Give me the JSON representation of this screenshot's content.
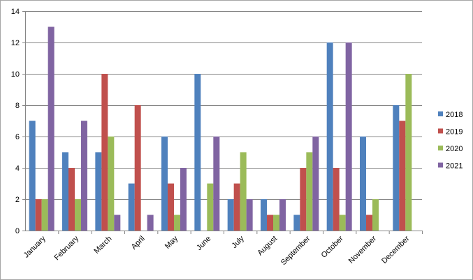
{
  "chart_data": {
    "type": "bar",
    "categories": [
      "January",
      "February",
      "March",
      "April",
      "May",
      "June",
      "July",
      "August",
      "September",
      "October",
      "November",
      "December"
    ],
    "series": [
      {
        "name": "2018",
        "color": "#4f81bd",
        "values": [
          7,
          5,
          5,
          3,
          6,
          10,
          2,
          2,
          1,
          12,
          6,
          8
        ]
      },
      {
        "name": "2019",
        "color": "#c0504d",
        "values": [
          2,
          4,
          10,
          8,
          3,
          0,
          3,
          1,
          4,
          4,
          1,
          7
        ]
      },
      {
        "name": "2020",
        "color": "#9bbb59",
        "values": [
          2,
          2,
          6,
          0,
          1,
          3,
          5,
          1,
          5,
          1,
          2,
          10
        ]
      },
      {
        "name": "2021",
        "color": "#8064a2",
        "values": [
          13,
          7,
          1,
          1,
          4,
          6,
          2,
          2,
          6,
          12,
          0,
          0
        ]
      }
    ],
    "ylim": [
      0,
      14
    ],
    "yticks": [
      "0",
      "2",
      "4",
      "6",
      "8",
      "10",
      "12",
      "14"
    ],
    "grid": true,
    "legend_position": "right",
    "title": "",
    "xlabel": "",
    "ylabel": ""
  }
}
